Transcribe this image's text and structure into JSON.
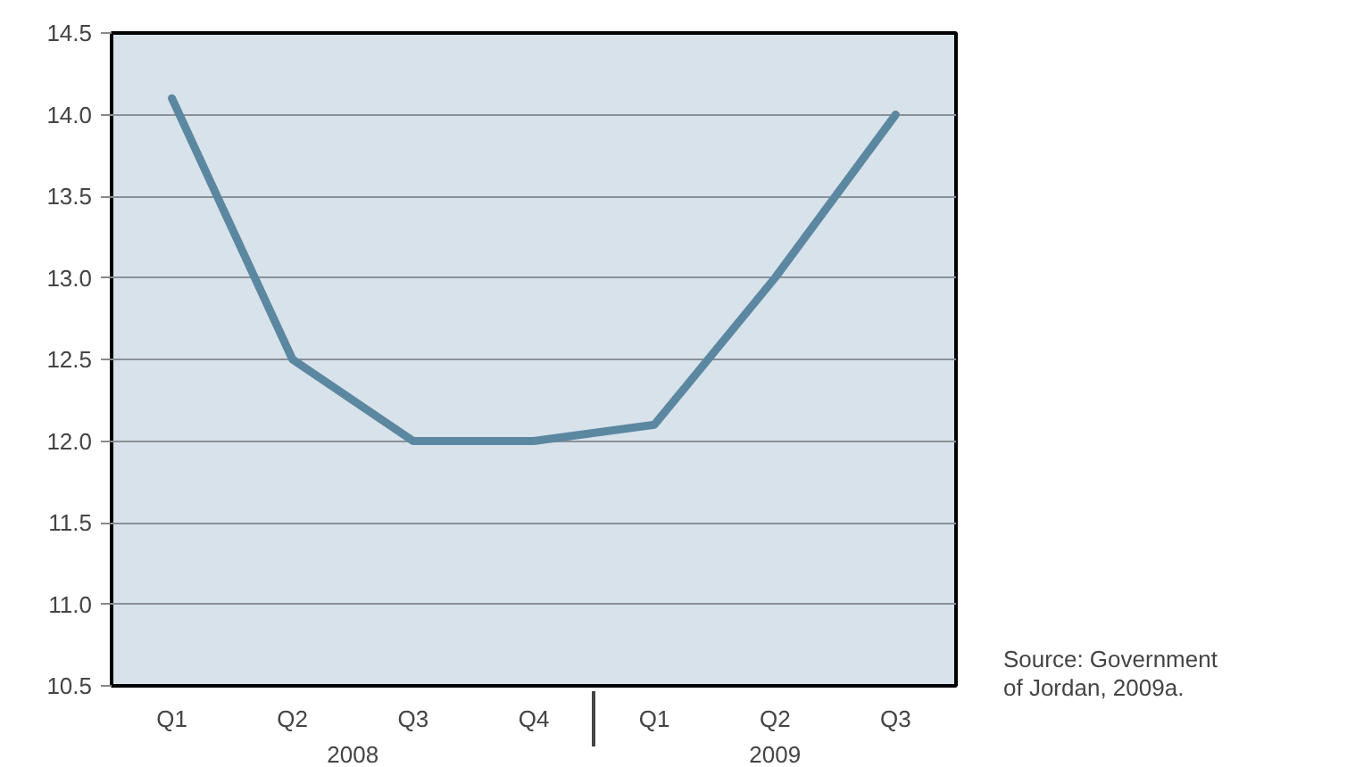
{
  "chart_data": {
    "type": "line",
    "categories": [
      "Q1",
      "Q2",
      "Q3",
      "Q4",
      "Q1",
      "Q2",
      "Q3"
    ],
    "series": [
      {
        "color": "#5b87a1",
        "values": [
          14.1,
          12.5,
          12.0,
          12.0,
          12.1,
          13.0,
          14.0
        ]
      }
    ],
    "ylim": [
      10.5,
      14.5
    ],
    "yticks": [
      10.5,
      {
        "value": 11,
        "label": "11.0"
      },
      11.5,
      {
        "value": 12,
        "label": "12.0"
      },
      12.5,
      {
        "value": 13,
        "label": "13.0"
      },
      13.5,
      {
        "value": 14,
        "label": "14.0"
      },
      14.5
    ],
    "grid": "y",
    "marker": "none",
    "line_style": "solid",
    "annotations": [
      "2008",
      "2009",
      "Source: Government\nof Jordan, 2009a."
    ]
  }
}
